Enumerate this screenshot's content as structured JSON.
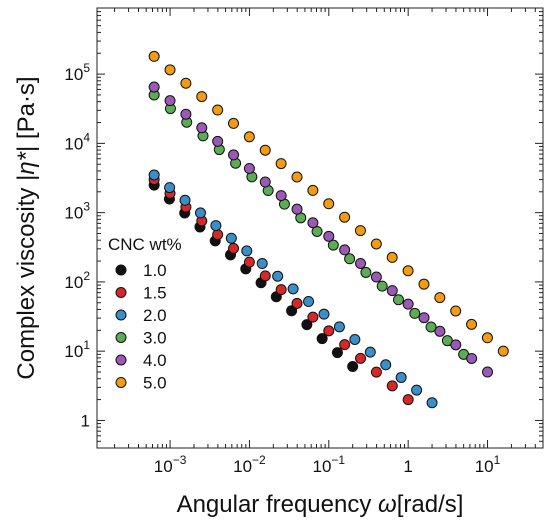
{
  "chart_data": {
    "type": "scatter",
    "xlabel_prefix": "Angular frequency ",
    "xlabel_symbol": "ω",
    "xlabel_suffix": "[rad/s]",
    "ylabel_prefix": "Complex viscosity |",
    "ylabel_symbol": "η*",
    "ylabel_suffix": "| [Pa·s]",
    "x_scale": "log",
    "y_scale": "log",
    "xlim": [
      0.00012,
      50
    ],
    "ylim": [
      0.4,
      900000
    ],
    "x_ticks": [
      {
        "value": 0.001,
        "base": "10",
        "exp": "−3"
      },
      {
        "value": 0.01,
        "base": "10",
        "exp": "−2"
      },
      {
        "value": 0.1,
        "base": "10",
        "exp": "−1"
      },
      {
        "value": 1,
        "base": "1",
        "exp": ""
      },
      {
        "value": 10,
        "base": "10",
        "exp": "1"
      }
    ],
    "y_ticks": [
      {
        "value": 1,
        "base": "1",
        "exp": ""
      },
      {
        "value": 10,
        "base": "10",
        "exp": "1"
      },
      {
        "value": 100,
        "base": "10",
        "exp": "2"
      },
      {
        "value": 1000,
        "base": "10",
        "exp": "3"
      },
      {
        "value": 10000,
        "base": "10",
        "exp": "4"
      },
      {
        "value": 100000,
        "base": "10",
        "exp": "5"
      }
    ],
    "grid": false,
    "legend_title": "CNC wt%",
    "legend_position": "left-center",
    "series": [
      {
        "name": "1.0",
        "color": "#111111",
        "x_start": 0.00063,
        "x_end": 0.2,
        "y_start": 2500,
        "y_end": 6
      },
      {
        "name": "1.5",
        "color": "#d62828",
        "x_start": 0.00063,
        "x_end": 1.0,
        "y_start": 3000,
        "y_end": 2.0
      },
      {
        "name": "2.0",
        "color": "#3a8fc8",
        "x_start": 0.00063,
        "x_end": 2.0,
        "y_start": 3500,
        "y_end": 1.8
      },
      {
        "name": "3.0",
        "color": "#5cac55",
        "x_start": 0.00063,
        "x_end": 5.0,
        "y_start": 50000,
        "y_end": 9
      },
      {
        "name": "4.0",
        "color": "#9b59b6",
        "x_start": 0.00063,
        "x_end": 10.0,
        "y_start": 65000,
        "y_end": 5
      },
      {
        "name": "5.0",
        "color": "#f39c12",
        "x_start": 0.00063,
        "x_end": 15.8,
        "y_start": 180000,
        "y_end": 10
      }
    ]
  }
}
